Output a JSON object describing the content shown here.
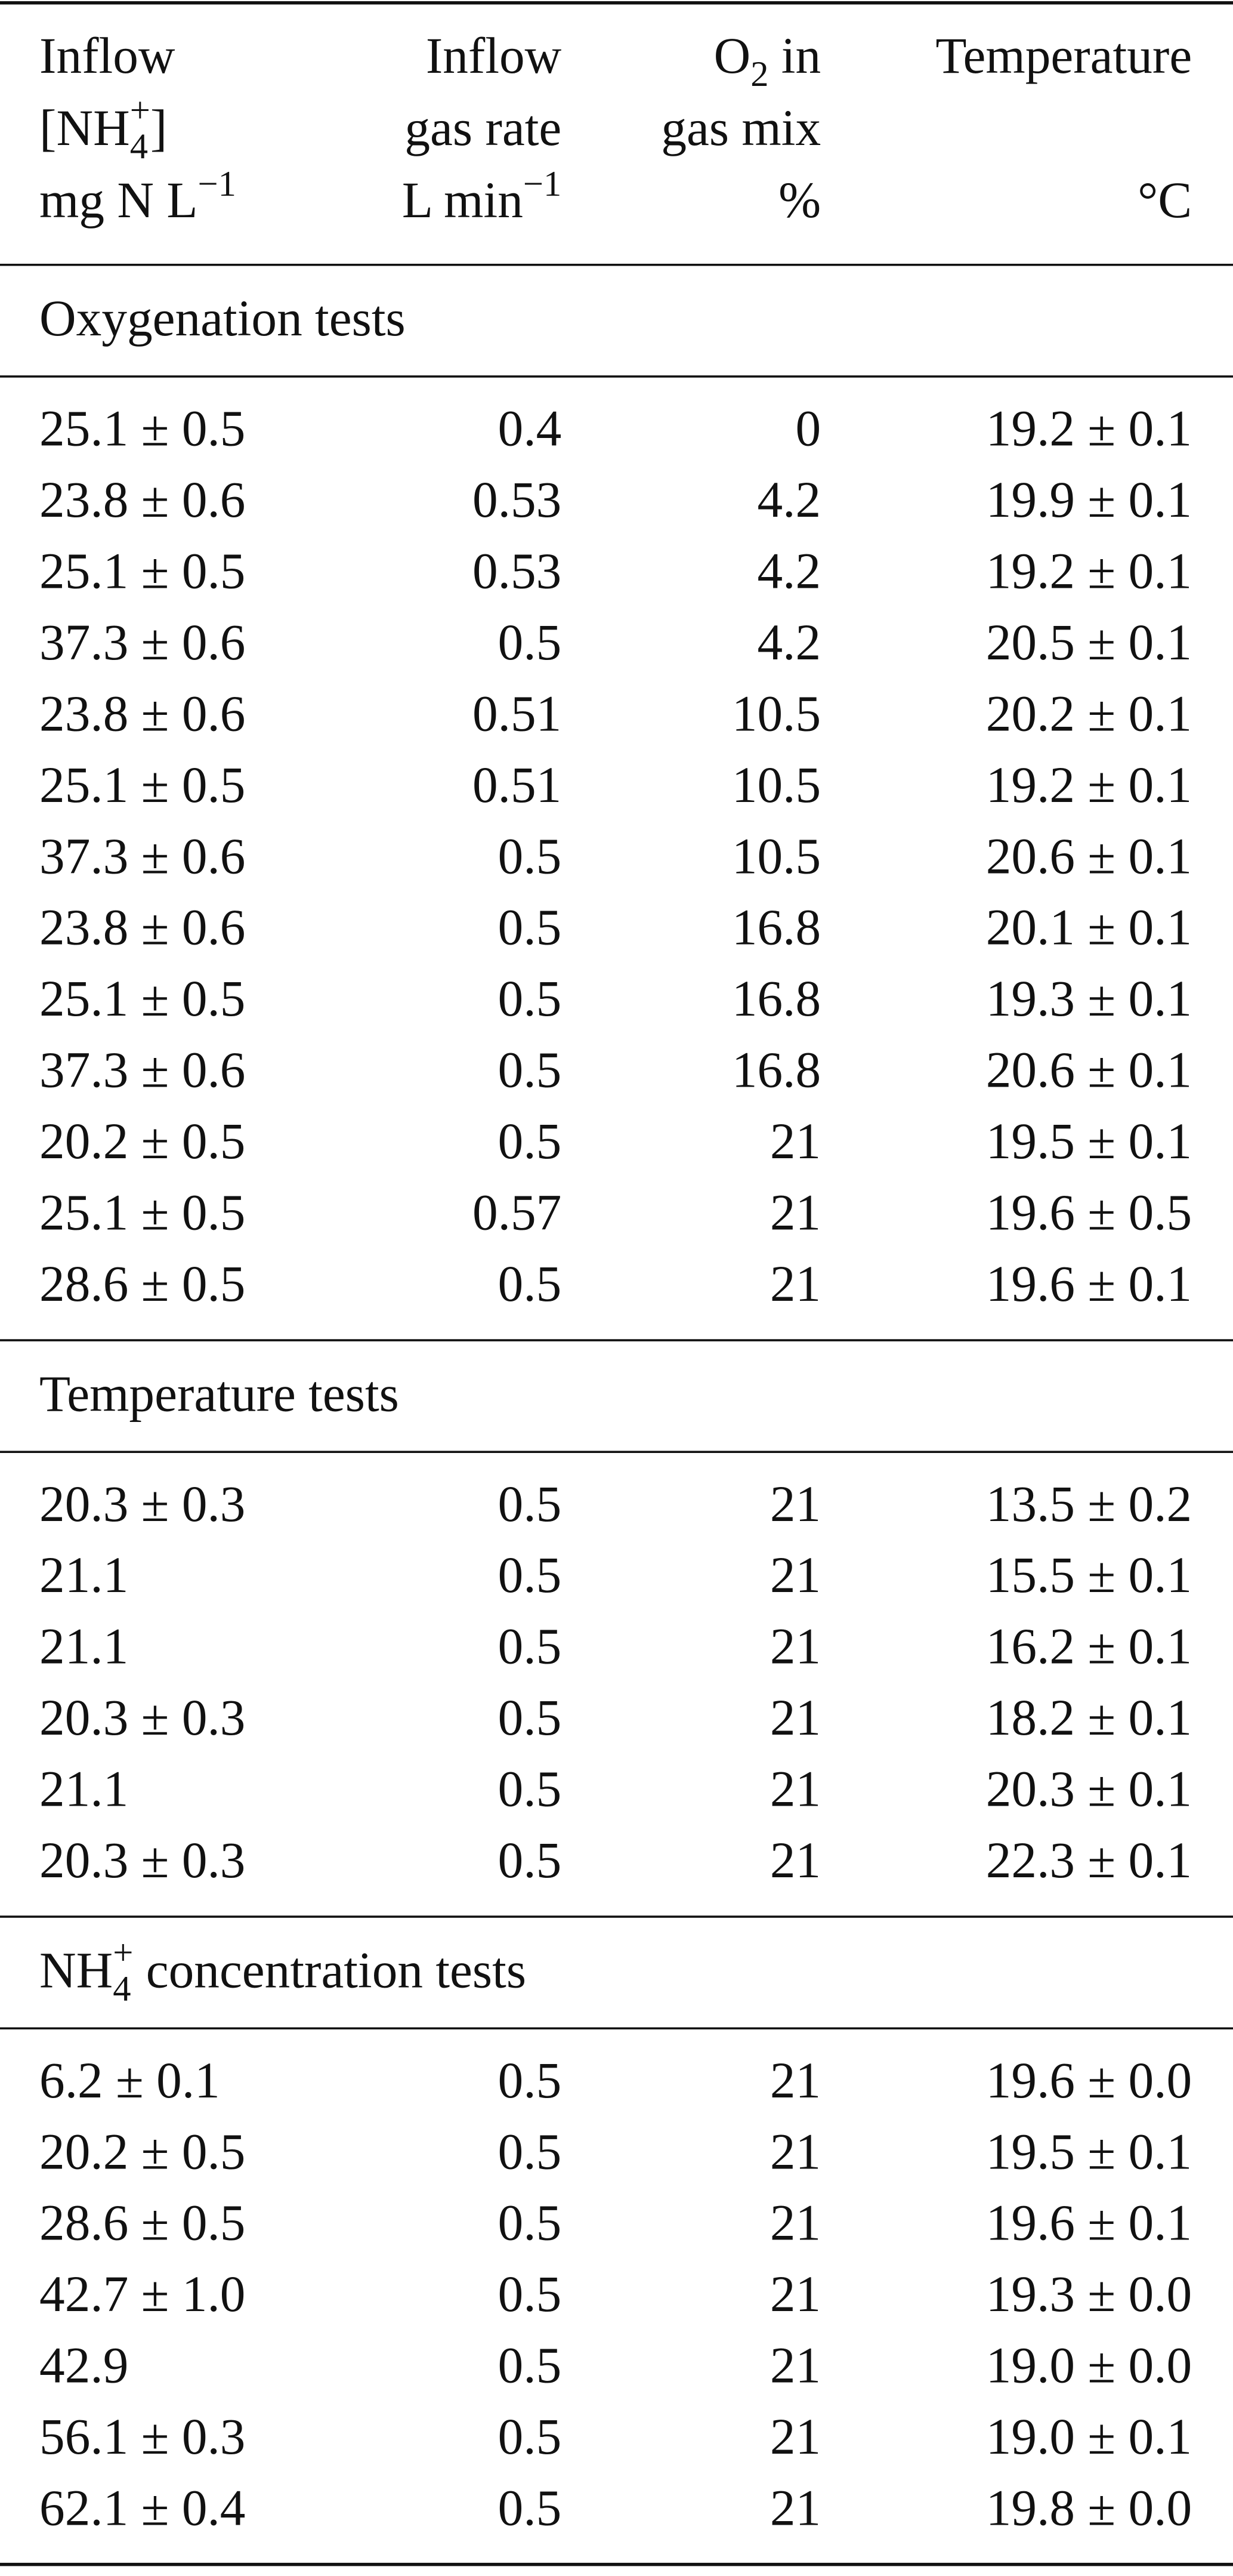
{
  "header": {
    "columns": [
      {
        "top": [
          [
            {
              "text": "Inflow"
            }
          ],
          [
            {
              "text": "[NH"
            },
            {
              "sub": "4",
              "sup": "+"
            },
            {
              "text": "]"
            }
          ]
        ],
        "unit": [
          {
            "text": "mg N L"
          },
          {
            "sup": "−1"
          }
        ]
      },
      {
        "top": [
          [
            {
              "text": "Inflow"
            }
          ],
          [
            {
              "text": "gas rate"
            }
          ]
        ],
        "unit": [
          {
            "text": "L min"
          },
          {
            "sup": "−1"
          }
        ]
      },
      {
        "top": [
          [
            {
              "text": "O"
            },
            {
              "sub": "2"
            },
            {
              "text": " in"
            }
          ],
          [
            {
              "text": "gas mix"
            }
          ]
        ],
        "unit": [
          {
            "text": "%"
          }
        ]
      },
      {
        "top": [
          [
            {
              "text": "Temperature"
            }
          ]
        ],
        "unit": [
          {
            "text": "°C"
          }
        ]
      }
    ]
  },
  "sections": [
    {
      "title": [
        {
          "text": "Oxygenation tests"
        }
      ],
      "rows": [
        [
          "25.1 ± 0.5",
          "0.4",
          "0",
          "19.2 ± 0.1"
        ],
        [
          "23.8 ± 0.6",
          "0.53",
          "4.2",
          "19.9 ± 0.1"
        ],
        [
          "25.1 ± 0.5",
          "0.53",
          "4.2",
          "19.2 ± 0.1"
        ],
        [
          "37.3 ± 0.6",
          "0.5",
          "4.2",
          "20.5 ± 0.1"
        ],
        [
          "23.8 ± 0.6",
          "0.51",
          "10.5",
          "20.2 ± 0.1"
        ],
        [
          "25.1 ± 0.5",
          "0.51",
          "10.5",
          "19.2 ± 0.1"
        ],
        [
          "37.3 ± 0.6",
          "0.5",
          "10.5",
          "20.6 ± 0.1"
        ],
        [
          "23.8 ± 0.6",
          "0.5",
          "16.8",
          "20.1 ± 0.1"
        ],
        [
          "25.1 ± 0.5",
          "0.5",
          "16.8",
          "19.3 ± 0.1"
        ],
        [
          "37.3 ± 0.6",
          "0.5",
          "16.8",
          "20.6 ± 0.1"
        ],
        [
          "20.2 ± 0.5",
          "0.5",
          "21",
          "19.5 ± 0.1"
        ],
        [
          "25.1 ± 0.5",
          "0.57",
          "21",
          "19.6 ± 0.5"
        ],
        [
          "28.6 ± 0.5",
          "0.5",
          "21",
          "19.6 ± 0.1"
        ]
      ]
    },
    {
      "title": [
        {
          "text": "Temperature tests"
        }
      ],
      "rows": [
        [
          "20.3 ± 0.3",
          "0.5",
          "21",
          "13.5 ± 0.2"
        ],
        [
          "21.1",
          "0.5",
          "21",
          "15.5 ± 0.1"
        ],
        [
          "21.1",
          "0.5",
          "21",
          "16.2 ± 0.1"
        ],
        [
          "20.3 ± 0.3",
          "0.5",
          "21",
          "18.2 ± 0.1"
        ],
        [
          "21.1",
          "0.5",
          "21",
          "20.3 ± 0.1"
        ],
        [
          "20.3 ± 0.3",
          "0.5",
          "21",
          "22.3 ± 0.1"
        ]
      ]
    },
    {
      "title": [
        {
          "text": "NH"
        },
        {
          "sub": "4",
          "sup": "+"
        },
        {
          "text": " concentration tests"
        }
      ],
      "rows": [
        [
          "6.2 ± 0.1",
          "0.5",
          "21",
          "19.6 ± 0.0"
        ],
        [
          "20.2 ± 0.5",
          "0.5",
          "21",
          "19.5 ± 0.1"
        ],
        [
          "28.6 ± 0.5",
          "0.5",
          "21",
          "19.6 ± 0.1"
        ],
        [
          "42.7 ± 1.0",
          "0.5",
          "21",
          "19.3 ± 0.0"
        ],
        [
          "42.9",
          "0.5",
          "21",
          "19.0 ± 0.0"
        ],
        [
          "56.1 ± 0.3",
          "0.5",
          "21",
          "19.0 ± 0.1"
        ],
        [
          "62.1 ± 0.4",
          "0.5",
          "21",
          "19.8 ± 0.0"
        ]
      ]
    }
  ]
}
